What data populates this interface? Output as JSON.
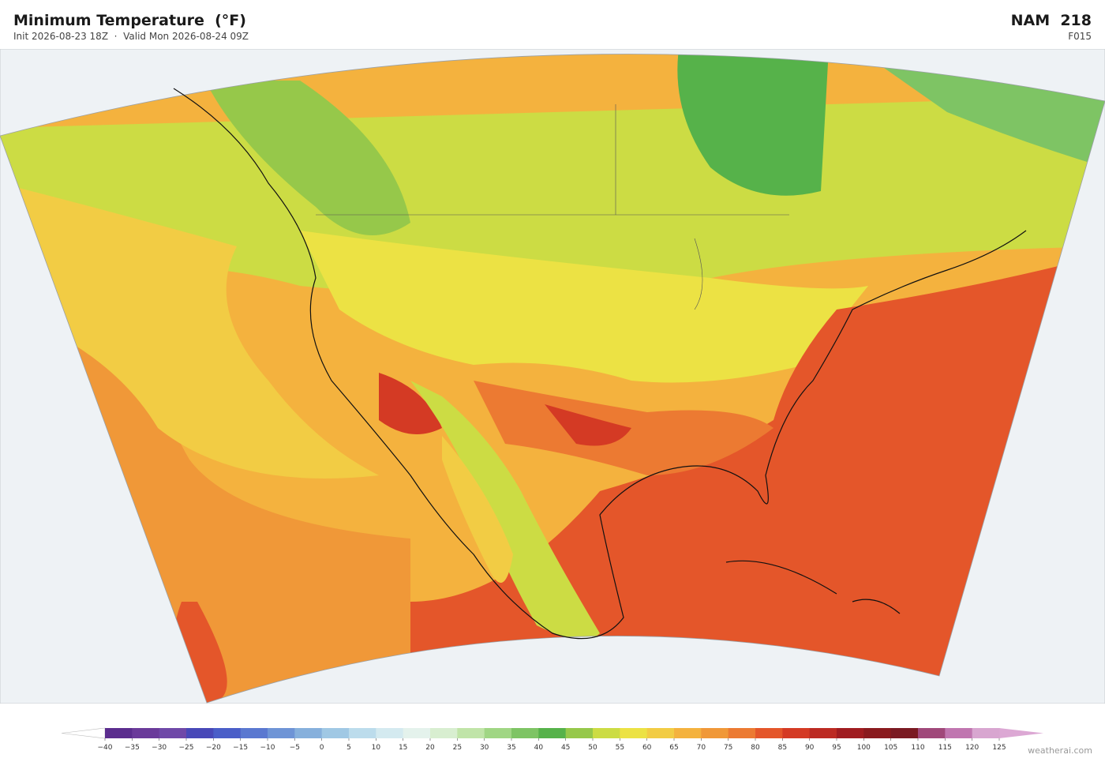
{
  "header": {
    "title": "Minimum Temperature  (°F)",
    "subtitle": "Init 2026-08-23 18Z  ·  Valid Mon 2026-08-24 09Z",
    "model": "NAM  218",
    "forecast_hour": "F015"
  },
  "colorbar": {
    "ticks": [
      {
        "value": -40,
        "label": "−40"
      },
      {
        "value": -35,
        "label": "−35"
      },
      {
        "value": -30,
        "label": "−30"
      },
      {
        "value": -25,
        "label": "−25"
      },
      {
        "value": -20,
        "label": "−20"
      },
      {
        "value": -15,
        "label": "−15"
      },
      {
        "value": -10,
        "label": "−10"
      },
      {
        "value": -5,
        "label": "−5"
      },
      0,
      5,
      10,
      15,
      20,
      25,
      30,
      35,
      40,
      45,
      50,
      55,
      60,
      65,
      70,
      75,
      80,
      85,
      90,
      95,
      100,
      105,
      110,
      115,
      120,
      125
    ],
    "colors": [
      "#5b2d8e",
      "#6a3a9a",
      "#6f48a8",
      "#4848b8",
      "#4a5ec8",
      "#5a78d0",
      "#6e94d6",
      "#86b0dc",
      "#a0c8e4",
      "#bcdcec",
      "#d4eaf0",
      "#e4f2ec",
      "#d8eed0",
      "#c0e4a8",
      "#a0d684",
      "#7ec464",
      "#56b24a",
      "#96c84a",
      "#ccdc44",
      "#ece244",
      "#f2cc44",
      "#f4b23e",
      "#f09838",
      "#ec7a32",
      "#e4562a",
      "#d43a24",
      "#bc2a22",
      "#a01c20",
      "#8a1a1e",
      "#7a1a22",
      "#a0487a",
      "#c076b0",
      "#d8a6d0"
    ],
    "under_color": "#ffffff",
    "over_color": "#dca8d4"
  },
  "watermark": "weatherai.com"
}
